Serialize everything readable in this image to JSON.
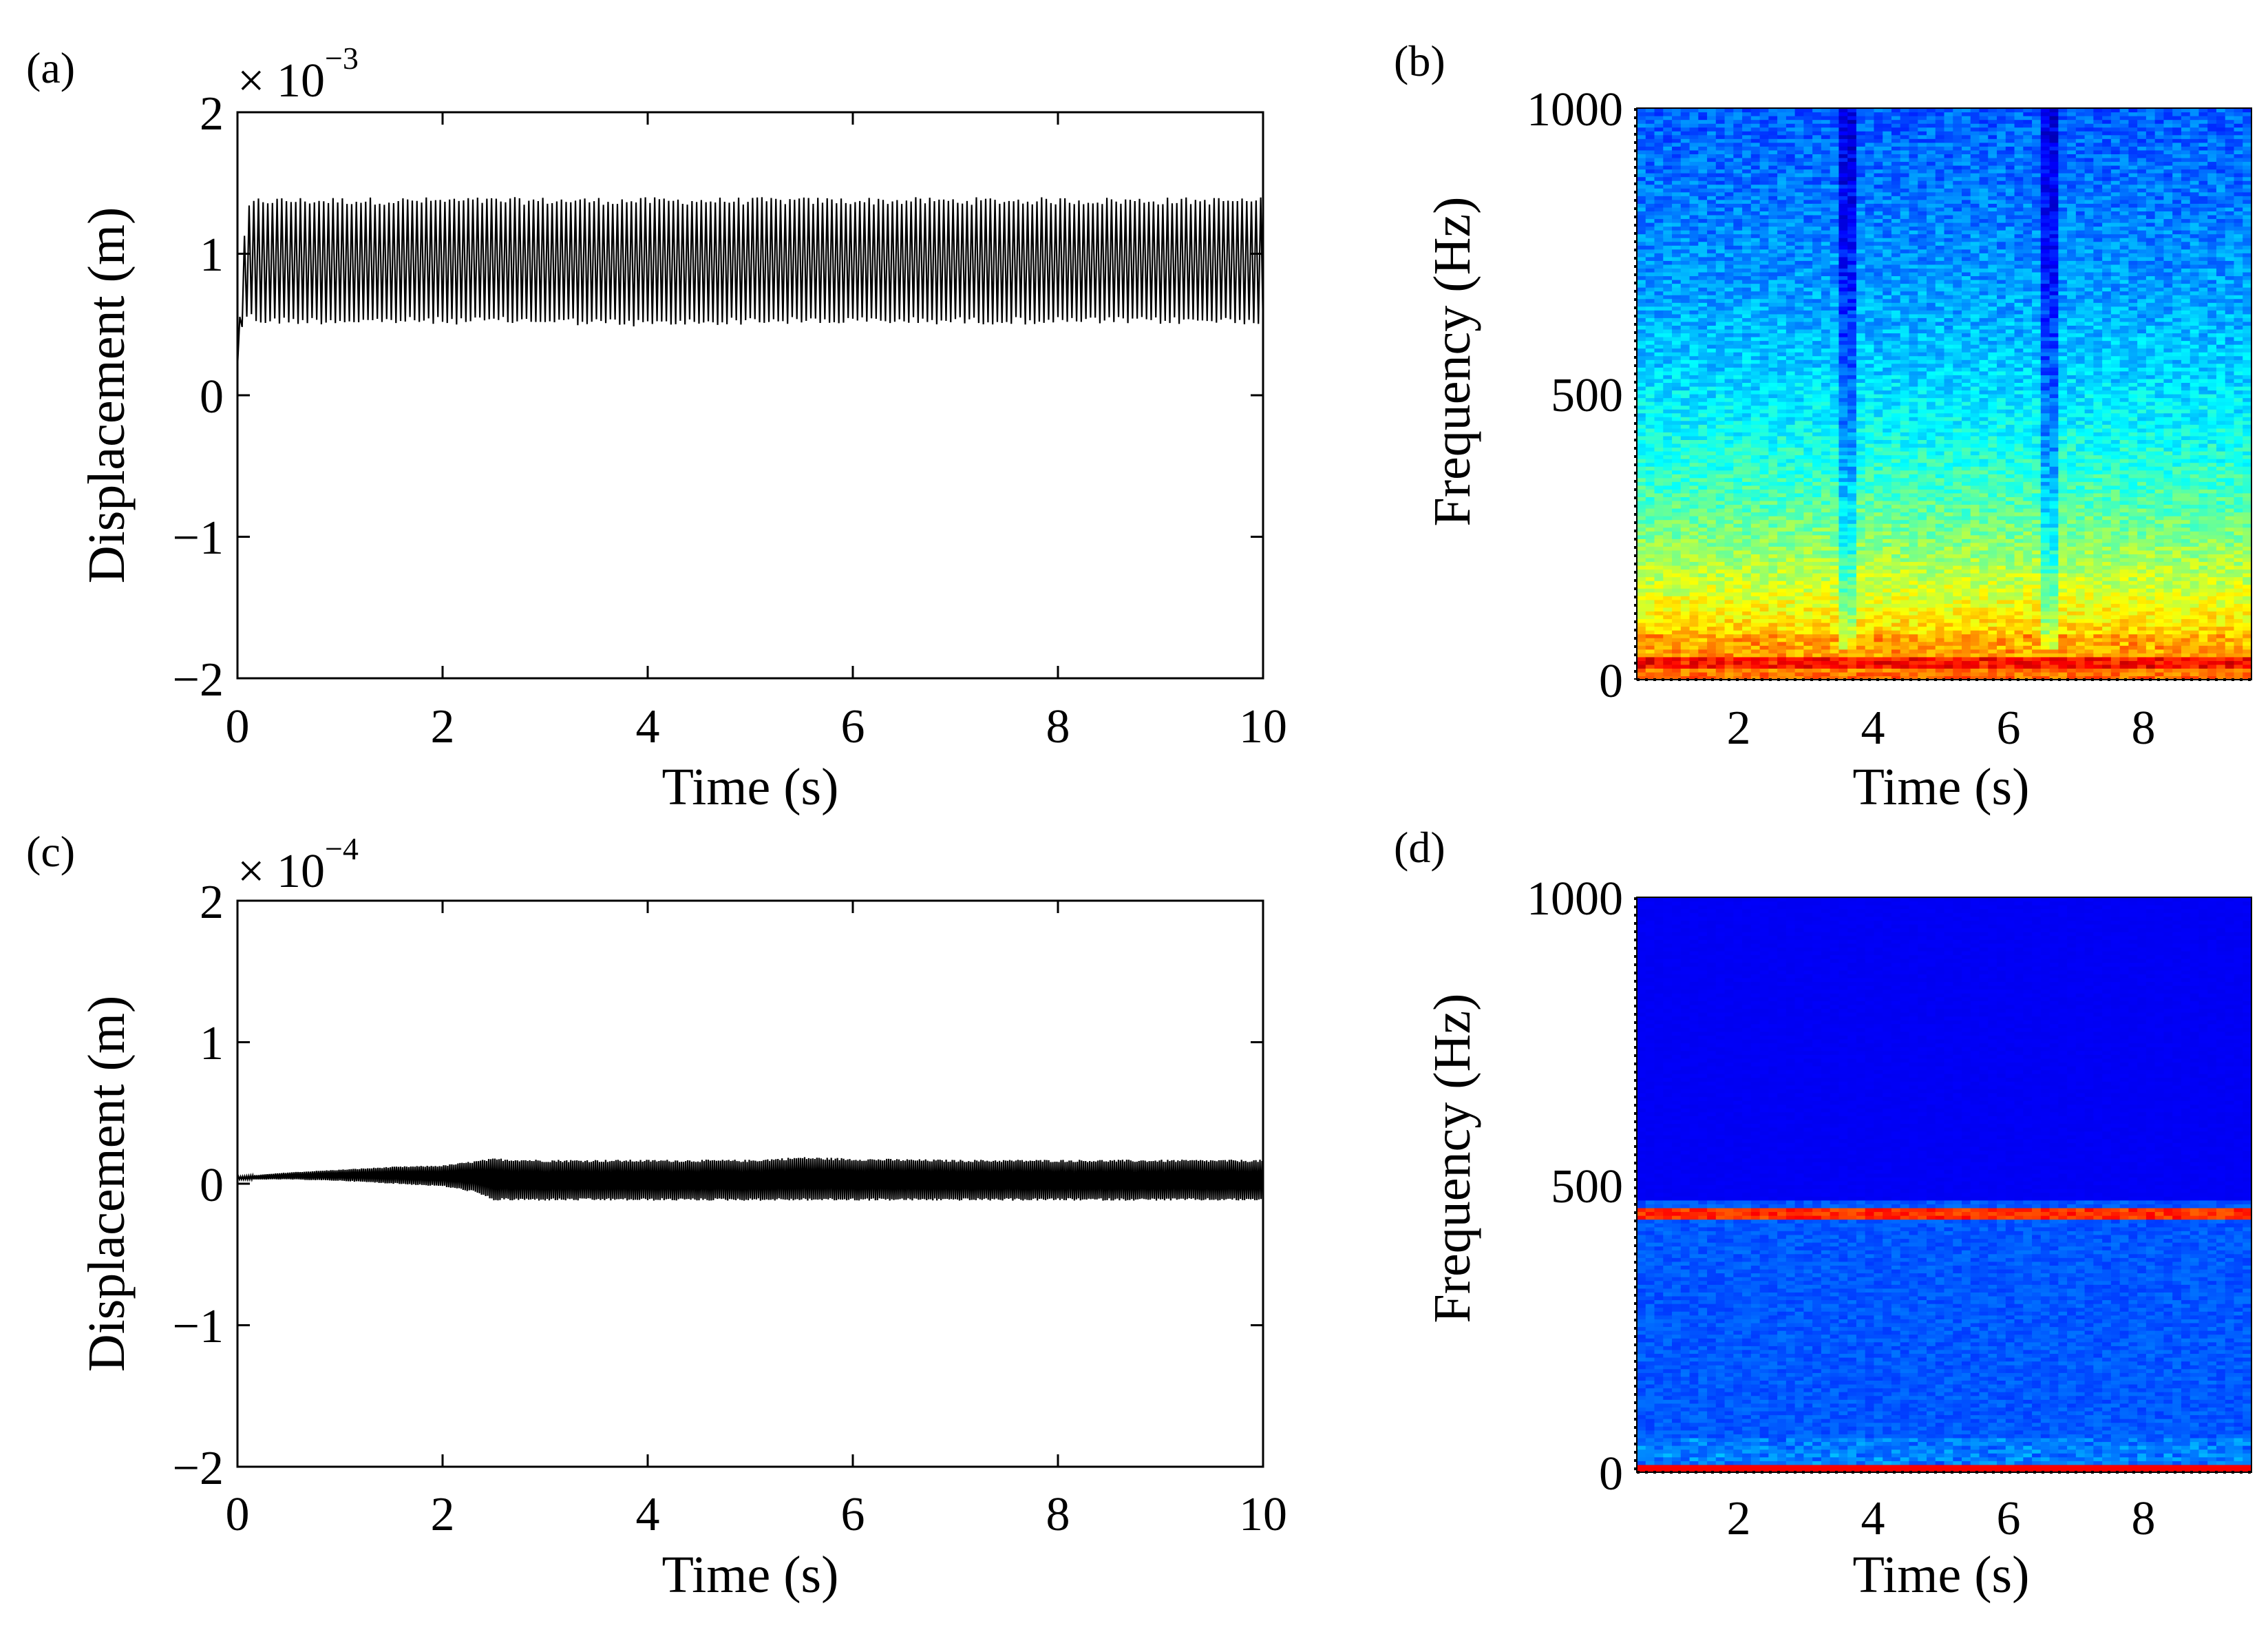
{
  "colors": {
    "trace": "#000000",
    "axes": "#000000",
    "background": "#ffffff",
    "colormap": "jet"
  },
  "chart_data": [
    {
      "id": "a",
      "panel_label": "(a)",
      "type": "line",
      "xlabel": "Time (s)",
      "ylabel": "Displacement (m)",
      "xlim": [
        0,
        10
      ],
      "ylim": [
        -2,
        2
      ],
      "xticks": [
        "0",
        "2",
        "4",
        "6",
        "8",
        "10"
      ],
      "yticks": [
        "2",
        "1",
        "0",
        "−1",
        "−2"
      ],
      "multiplier_base": "× 10",
      "multiplier_exponent": "−3",
      "grid": false,
      "signal": {
        "description_units": "1e-3 m",
        "x": [
          0,
          0.05,
          0.1,
          0.2,
          0.5,
          1,
          2,
          3,
          4,
          5,
          6,
          7,
          8,
          9,
          10
        ],
        "upper": [
          0.2,
          1.0,
          1.35,
          1.4,
          1.4,
          1.4,
          1.4,
          1.4,
          1.4,
          1.4,
          1.4,
          1.4,
          1.4,
          1.4,
          1.4
        ],
        "lower": [
          0.2,
          0.5,
          0.55,
          0.5,
          0.5,
          0.5,
          0.5,
          0.5,
          0.48,
          0.5,
          0.5,
          0.5,
          0.5,
          0.5,
          0.5
        ],
        "cycles_drawn": 220
      }
    },
    {
      "id": "b",
      "panel_label": "(b)",
      "type": "heatmap",
      "xlabel": "Time (s)",
      "ylabel": "Frequency (Hz)",
      "xlim": [
        0.5,
        9.5
      ],
      "ylim": [
        0,
        1000
      ],
      "xticks": [
        "2",
        "4",
        "6",
        "8"
      ],
      "yticks": [
        "1000",
        "500",
        "0"
      ],
      "colormap": "jet",
      "grid": false,
      "features": {
        "strong_band_hz": [
          20,
          40
        ],
        "energy_decay": "high near 0 Hz (red/yellow), decaying to blue above ~600 Hz",
        "dips_at_time_s": [
          3.6,
          6.5
        ]
      }
    },
    {
      "id": "c",
      "panel_label": "(c)",
      "type": "line",
      "xlabel": "Time (s)",
      "ylabel": "Displacement (m)",
      "xlim": [
        0,
        10
      ],
      "ylim": [
        -2,
        2
      ],
      "xticks": [
        "0",
        "2",
        "4",
        "6",
        "8",
        "10"
      ],
      "yticks": [
        "2",
        "1",
        "0",
        "−1",
        "−2"
      ],
      "multiplier_base": "× 10",
      "multiplier_exponent": "−4",
      "grid": false,
      "signal": {
        "description_units": "1e-4 m",
        "x": [
          0,
          0.5,
          1,
          1.5,
          2,
          2.3,
          2.5,
          3,
          4,
          5,
          5.5,
          6,
          7,
          8,
          9,
          10
        ],
        "upper": [
          0.05,
          0.08,
          0.1,
          0.12,
          0.13,
          0.16,
          0.18,
          0.17,
          0.17,
          0.17,
          0.19,
          0.18,
          0.17,
          0.17,
          0.17,
          0.17
        ],
        "lower": [
          0.03,
          0.03,
          0.02,
          0.0,
          -0.02,
          -0.06,
          -0.12,
          -0.12,
          -0.12,
          -0.12,
          -0.12,
          -0.12,
          -0.12,
          -0.12,
          -0.12,
          -0.12
        ],
        "cycles_drawn": 500
      }
    },
    {
      "id": "d",
      "panel_label": "(d)",
      "type": "heatmap",
      "xlabel": "Time (s)",
      "ylabel": "Frequency (Hz)",
      "xlim": [
        0.5,
        9.5
      ],
      "ylim": [
        0,
        1000
      ],
      "xticks": [
        "2",
        "4",
        "6",
        "8"
      ],
      "yticks": [
        "1000",
        "500",
        "0"
      ],
      "colormap": "jet",
      "grid": false,
      "features": {
        "strong_band_hz": [
          440,
          460
        ],
        "near_zero_band_hz": [
          0,
          15
        ],
        "energy_decay": "dark blue above ~470 Hz, medium blue below"
      }
    }
  ]
}
